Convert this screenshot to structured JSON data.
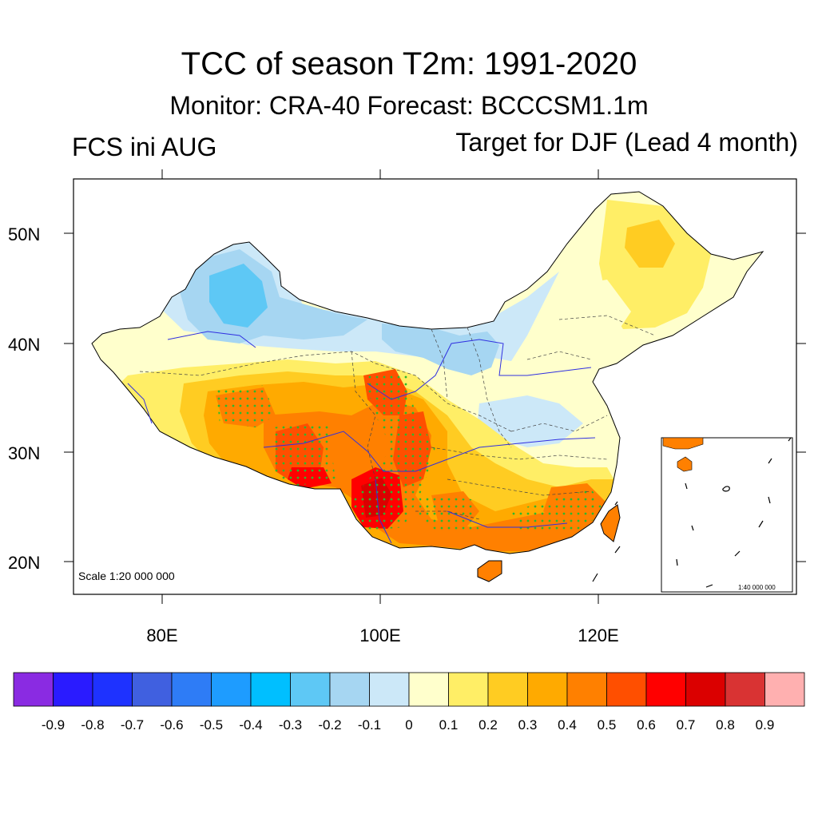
{
  "header": {
    "title": "TCC of season T2m: 1991-2020",
    "subtitle": "Monitor: CRA-40   Forecast: BCCCSM1.1m",
    "left_label": "FCS ini AUG",
    "right_label": "Target for DJF (Lead 4 month)"
  },
  "map": {
    "lat_labels": [
      "50N",
      "40N",
      "30N",
      "20N"
    ],
    "lon_labels": [
      "80E",
      "100E",
      "120E"
    ],
    "scale_text": "Scale 1:20 000 000",
    "inset_scale_text": "1:40 000 000"
  },
  "colorbar": {
    "colors": [
      "#8a2be2",
      "#2a1bff",
      "#1e32ff",
      "#4060e0",
      "#2e7cf6",
      "#1e9cff",
      "#00bfff",
      "#5ec8f5",
      "#a6d6f2",
      "#cce8f8",
      "#ffffcc",
      "#ffee66",
      "#ffcc22",
      "#ffaa00",
      "#ff8000",
      "#ff4f00",
      "#ff0000",
      "#db0000",
      "#d93333",
      "#ffb0b0"
    ],
    "labels": [
      "-0.9",
      "-0.8",
      "-0.7",
      "-0.6",
      "-0.5",
      "-0.4",
      "-0.3",
      "-0.2",
      "-0.1",
      "0",
      "0.1",
      "0.2",
      "0.3",
      "0.4",
      "0.5",
      "0.6",
      "0.7",
      "0.8",
      "0.9"
    ]
  },
  "colors": {
    "coast": "#000000",
    "rivers": "#3030e0",
    "stipple": "#2db82d"
  }
}
